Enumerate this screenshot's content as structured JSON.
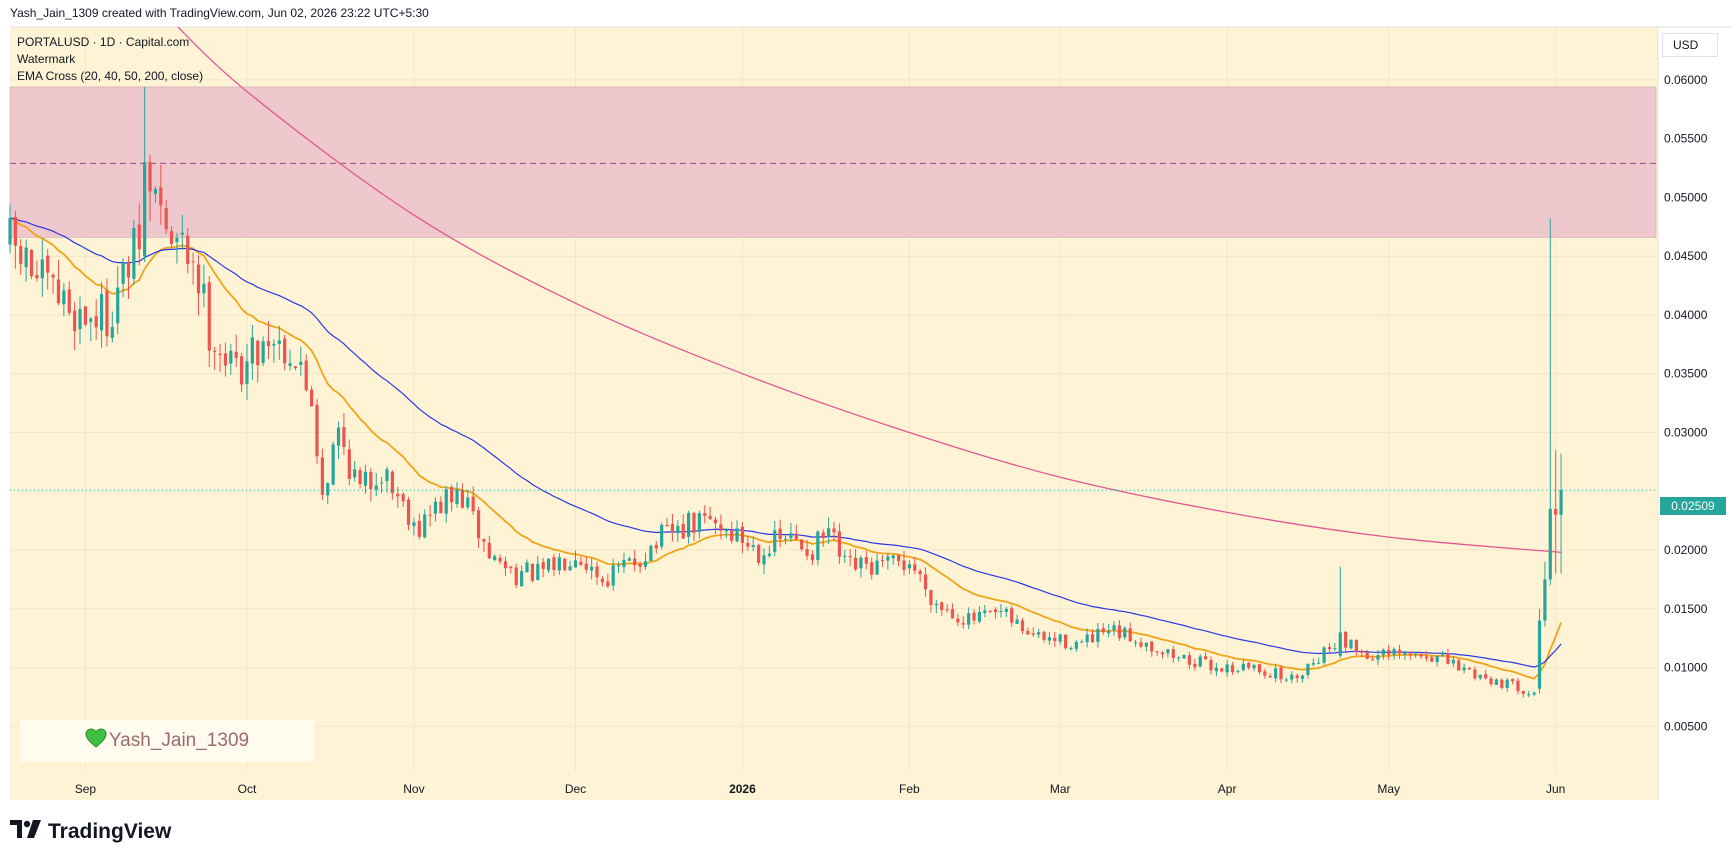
{
  "header": {
    "caption": "Yash_Jain_1309 created with TradingView.com, Jun 02, 2026 23:22 UTC+5:30"
  },
  "legend": {
    "symbol_line": "PORTALUSD · 1D · Capital.com",
    "watermark_line": "Watermark",
    "indicator_line": "EMA Cross (20, 40, 50, 200, close)"
  },
  "currency_label": "USD",
  "watermark": {
    "text": "Yash_Jain_1309",
    "icon": "green-heart-icon"
  },
  "branding": {
    "logo_text": "TradingView",
    "icon": "tradingview-logo-icon"
  },
  "last_price": {
    "label": "0.02509",
    "value": 0.02509
  },
  "colors": {
    "up": "#26a69a",
    "down": "#ef5350",
    "background": "#fff3d6",
    "zone": "#eec8cc",
    "ema_fast": "#f0a418",
    "ema_mid": "#2b37e6",
    "ema_slow": "#e35694",
    "last_price_tag": "#26a69a"
  },
  "chart_data": {
    "type": "candlestick",
    "title": "PORTALUSD · 1D · Capital.com",
    "xlabel": "",
    "ylabel": "",
    "y_ticks": [
      "0.06000",
      "0.05500",
      "0.05000",
      "0.04500",
      "0.04000",
      "0.03500",
      "0.03000",
      "0.02000",
      "0.01500",
      "0.01000",
      "0.00500"
    ],
    "ylim": [
      0.0012,
      0.0645
    ],
    "x_ticks": [
      {
        "label": "Sep",
        "date": "2025-09-01"
      },
      {
        "label": "Oct",
        "date": "2025-10-01"
      },
      {
        "label": "Nov",
        "date": "2025-11-01"
      },
      {
        "label": "Dec",
        "date": "2025-12-01"
      },
      {
        "label": "2026",
        "date": "2026-01-01"
      },
      {
        "label": "Feb",
        "date": "2026-02-01"
      },
      {
        "label": "Mar",
        "date": "2026-03-01"
      },
      {
        "label": "Apr",
        "date": "2026-04-01"
      },
      {
        "label": "May",
        "date": "2026-05-01"
      },
      {
        "label": "Jun",
        "date": "2026-06-01"
      }
    ],
    "xlim": [
      "2025-08-18",
      "2026-06-20"
    ],
    "grid": true,
    "zone": {
      "top": 0.0594,
      "bottom": 0.0466,
      "midline": 0.0529
    },
    "last_price": 0.02509,
    "close_anchors": [
      [
        "2025-08-18",
        0.046
      ],
      [
        "2025-08-25",
        0.042
      ],
      [
        "2025-08-31",
        0.04
      ],
      [
        "2025-09-05",
        0.04
      ],
      [
        "2025-09-10",
        0.045
      ],
      [
        "2025-09-14",
        0.05
      ],
      [
        "2025-09-17",
        0.046
      ],
      [
        "2025-09-21",
        0.045
      ],
      [
        "2025-09-24",
        0.039
      ],
      [
        "2025-09-28",
        0.0355
      ],
      [
        "2025-10-01",
        0.036
      ],
      [
        "2025-10-05",
        0.0385
      ],
      [
        "2025-10-09",
        0.037
      ],
      [
        "2025-10-13",
        0.033
      ],
      [
        "2025-10-15",
        0.025
      ],
      [
        "2025-10-18",
        0.03
      ],
      [
        "2025-10-22",
        0.025
      ],
      [
        "2025-10-26",
        0.027
      ],
      [
        "2025-10-30",
        0.024
      ],
      [
        "2025-11-02",
        0.022
      ],
      [
        "2025-11-06",
        0.024
      ],
      [
        "2025-11-10",
        0.0245
      ],
      [
        "2025-11-15",
        0.0195
      ],
      [
        "2025-11-20",
        0.018
      ],
      [
        "2025-11-25",
        0.018
      ],
      [
        "2025-12-01",
        0.02
      ],
      [
        "2025-12-06",
        0.0175
      ],
      [
        "2025-12-12",
        0.019
      ],
      [
        "2025-12-17",
        0.021
      ],
      [
        "2025-12-22",
        0.022
      ],
      [
        "2025-12-26",
        0.0225
      ],
      [
        "2025-12-30",
        0.0215
      ],
      [
        "2026-01-04",
        0.02
      ],
      [
        "2026-01-09",
        0.021
      ],
      [
        "2026-01-14",
        0.02
      ],
      [
        "2026-01-17",
        0.0215
      ],
      [
        "2026-01-20",
        0.0185
      ],
      [
        "2026-01-27",
        0.0185
      ],
      [
        "2026-02-01",
        0.019
      ],
      [
        "2026-02-06",
        0.0155
      ],
      [
        "2026-02-12",
        0.014
      ],
      [
        "2026-02-18",
        0.0145
      ],
      [
        "2026-02-25",
        0.0125
      ],
      [
        "2026-03-05",
        0.012
      ],
      [
        "2026-03-10",
        0.013
      ],
      [
        "2026-03-15",
        0.0125
      ],
      [
        "2026-03-22",
        0.011
      ],
      [
        "2026-03-30",
        0.01
      ],
      [
        "2026-04-06",
        0.01
      ],
      [
        "2026-04-13",
        0.009
      ],
      [
        "2026-04-18",
        0.011
      ],
      [
        "2026-04-22",
        0.0125
      ],
      [
        "2026-04-27",
        0.011
      ],
      [
        "2026-05-04",
        0.011
      ],
      [
        "2026-05-09",
        0.011
      ],
      [
        "2026-05-14",
        0.01
      ],
      [
        "2026-05-20",
        0.009
      ],
      [
        "2026-05-26",
        0.0082
      ],
      [
        "2026-05-28",
        0.008
      ],
      [
        "2026-05-29",
        0.013
      ],
      [
        "2026-05-30",
        0.017
      ],
      [
        "2026-05-31",
        0.024
      ],
      [
        "2026-06-01",
        0.024
      ],
      [
        "2026-06-02",
        0.0251
      ]
    ],
    "special_candles": [
      {
        "date": "2025-09-12",
        "open": 0.045,
        "high": 0.0594,
        "low": 0.0445,
        "close": 0.053
      },
      {
        "date": "2025-09-13",
        "open": 0.053,
        "high": 0.0536,
        "low": 0.048,
        "close": 0.0505
      },
      {
        "date": "2026-04-22",
        "open": 0.011,
        "high": 0.0186,
        "low": 0.0108,
        "close": 0.013
      },
      {
        "date": "2026-05-29",
        "open": 0.0082,
        "high": 0.015,
        "low": 0.0078,
        "close": 0.014
      },
      {
        "date": "2026-05-30",
        "open": 0.014,
        "high": 0.019,
        "low": 0.0135,
        "close": 0.0175
      },
      {
        "date": "2026-05-31",
        "open": 0.0175,
        "high": 0.0482,
        "low": 0.017,
        "close": 0.0235
      },
      {
        "date": "2026-06-01",
        "open": 0.0235,
        "high": 0.0285,
        "low": 0.018,
        "close": 0.023
      },
      {
        "date": "2026-06-02",
        "open": 0.023,
        "high": 0.0282,
        "low": 0.018,
        "close": 0.0251
      }
    ],
    "ema_200_anchors": [
      [
        "2025-09-15",
        0.066
      ],
      [
        "2025-10-01",
        0.059
      ],
      [
        "2025-11-01",
        0.0485
      ],
      [
        "2025-12-01",
        0.041
      ],
      [
        "2026-01-01",
        0.035
      ],
      [
        "2026-02-01",
        0.03
      ],
      [
        "2026-03-01",
        0.0262
      ],
      [
        "2026-04-01",
        0.0232
      ],
      [
        "2026-05-01",
        0.0211
      ],
      [
        "2026-06-02",
        0.0198
      ]
    ],
    "series": [
      {
        "type": "ema",
        "period": 20,
        "color": "#f0a418"
      },
      {
        "type": "ema",
        "period": 50,
        "color": "#2b37e6"
      },
      {
        "type": "ema",
        "period": 200,
        "color": "#e35694"
      }
    ]
  }
}
